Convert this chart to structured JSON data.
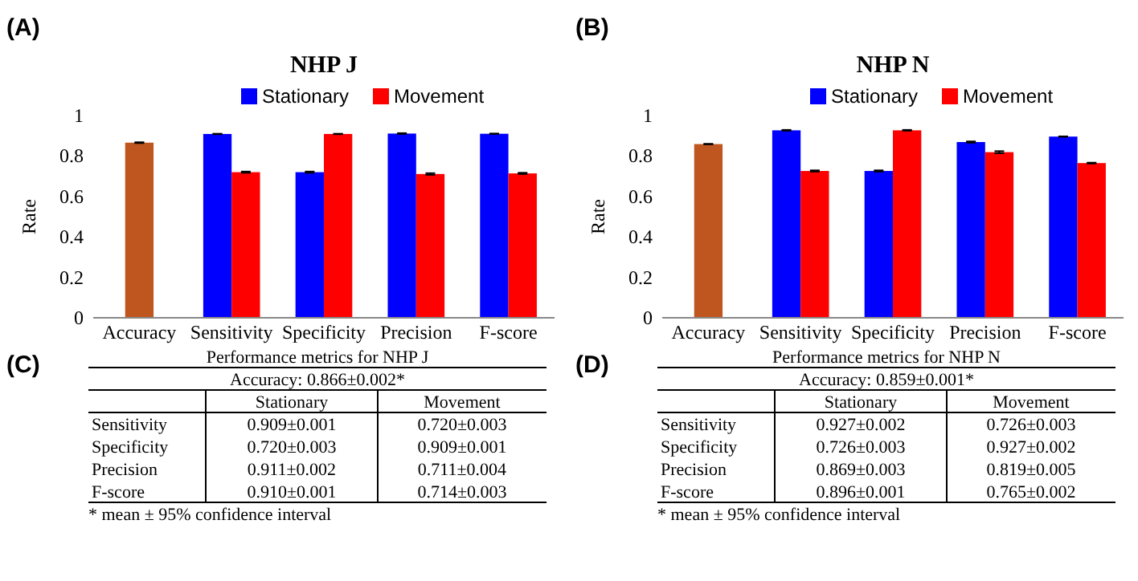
{
  "chart_data": [
    {
      "type": "bar",
      "title": "NHP J",
      "ylabel": "Rate",
      "categories": [
        "Accuracy",
        "Sensitivity",
        "Specificity",
        "Precision",
        "F-score"
      ],
      "ylim": [
        0,
        1
      ],
      "yticks": [
        0,
        0.2,
        0.4,
        0.6,
        0.8,
        1
      ],
      "legend": "top",
      "annotations": [
        "(A)",
        "(C)",
        "Performance metrics for NHP J",
        "* mean ± 95% confidence interval",
        "Accuracy: 0.866±0.002*",
        "0.909±0.001",
        "0.720±0.003",
        "0.720±0.003",
        "0.909±0.001",
        "0.911±0.002",
        "0.711±0.004",
        "0.910±0.001",
        "0.714±0.003"
      ],
      "series": [
        {
          "color": "#c0561f",
          "values": [
            0.866,
            null,
            null,
            null,
            null
          ],
          "errors": [
            0.002,
            null,
            null,
            null,
            null
          ]
        },
        {
          "name": "Stationary",
          "color": "#0000ff",
          "values": [
            null,
            0.909,
            0.72,
            0.911,
            0.91
          ],
          "errors": [
            null,
            0.001,
            0.003,
            0.002,
            0.001
          ]
        },
        {
          "name": "Movement",
          "color": "#ff0000",
          "values": [
            null,
            0.72,
            0.909,
            0.711,
            0.714
          ],
          "errors": [
            null,
            0.003,
            0.001,
            0.004,
            0.003
          ]
        }
      ]
    },
    {
      "type": "bar",
      "title": "NHP N",
      "ylabel": "Rate",
      "categories": [
        "Accuracy",
        "Sensitivity",
        "Specificity",
        "Precision",
        "F-score"
      ],
      "ylim": [
        0,
        1
      ],
      "yticks": [
        0,
        0.2,
        0.4,
        0.6,
        0.8,
        1
      ],
      "legend": "top",
      "annotations": [
        "(B)",
        "(D)",
        "Performance metrics for NHP N",
        "* mean ± 95% confidence interval",
        "Accuracy: 0.859±0.001*",
        "0.927±0.002",
        "0.726±0.003",
        "0.726±0.003",
        "0.927±0.002",
        "0.869±0.003",
        "0.819±0.005",
        "0.896±0.001",
        "0.765±0.002"
      ],
      "series": [
        {
          "color": "#c0561f",
          "values": [
            0.859,
            null,
            null,
            null,
            null
          ],
          "errors": [
            0.001,
            null,
            null,
            null,
            null
          ]
        },
        {
          "name": "Stationary",
          "color": "#0000ff",
          "values": [
            null,
            0.927,
            0.726,
            0.869,
            0.896
          ],
          "errors": [
            null,
            0.002,
            0.003,
            0.003,
            0.001
          ]
        },
        {
          "name": "Movement",
          "color": "#ff0000",
          "values": [
            null,
            0.726,
            0.927,
            0.819,
            0.765
          ],
          "errors": [
            null,
            0.003,
            0.002,
            0.005,
            0.002
          ]
        }
      ]
    }
  ]
}
